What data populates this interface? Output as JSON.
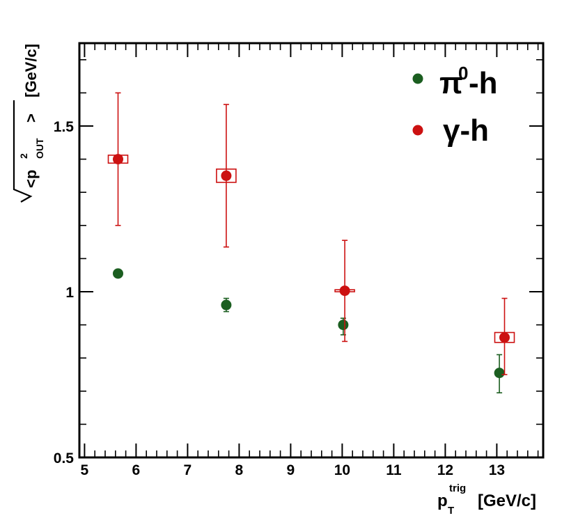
{
  "chart_data": {
    "type": "scatter",
    "xlabel": {
      "main": "p",
      "sup": "trig",
      "sub": "T",
      "unit": "[GeV/c]"
    },
    "ylabel": {
      "inner": "<p",
      "sup": "2",
      "sub": "OUT",
      "close": ">",
      "unit": "[GeV/c]"
    },
    "xlim": [
      4.9,
      13.9
    ],
    "ylim": [
      0.5,
      1.75
    ],
    "x_ticks": [
      "5",
      "6",
      "7",
      "8",
      "9",
      "10",
      "11",
      "12",
      "13"
    ],
    "y_ticks": [
      "0.5",
      "1",
      "1.5"
    ],
    "series": [
      {
        "name": "π0-h",
        "legend_main": "π",
        "legend_sup": "0",
        "legend_suffix": "-h",
        "color": "#1b5e20",
        "x": [
          5.65,
          7.75,
          10.02,
          13.05
        ],
        "y": [
          1.055,
          0.96,
          0.9,
          0.755
        ],
        "err_low": [
          0.01,
          0.02,
          0.03,
          0.06
        ],
        "err_high": [
          0.01,
          0.02,
          0.02,
          0.055
        ],
        "sys": [
          0,
          0,
          0,
          0
        ]
      },
      {
        "name": "γ-h",
        "legend_main": "γ",
        "legend_sup": "",
        "legend_suffix": "-h",
        "color": "#cc1111",
        "x": [
          5.65,
          7.75,
          10.05,
          13.15
        ],
        "y": [
          1.4,
          1.35,
          1.003,
          0.862
        ],
        "err_low": [
          0.2,
          0.215,
          0.153,
          0.112
        ],
        "err_high": [
          0.2,
          0.215,
          0.152,
          0.118
        ],
        "sys": [
          0.012,
          0.02,
          0.003,
          0.015
        ]
      }
    ]
  }
}
